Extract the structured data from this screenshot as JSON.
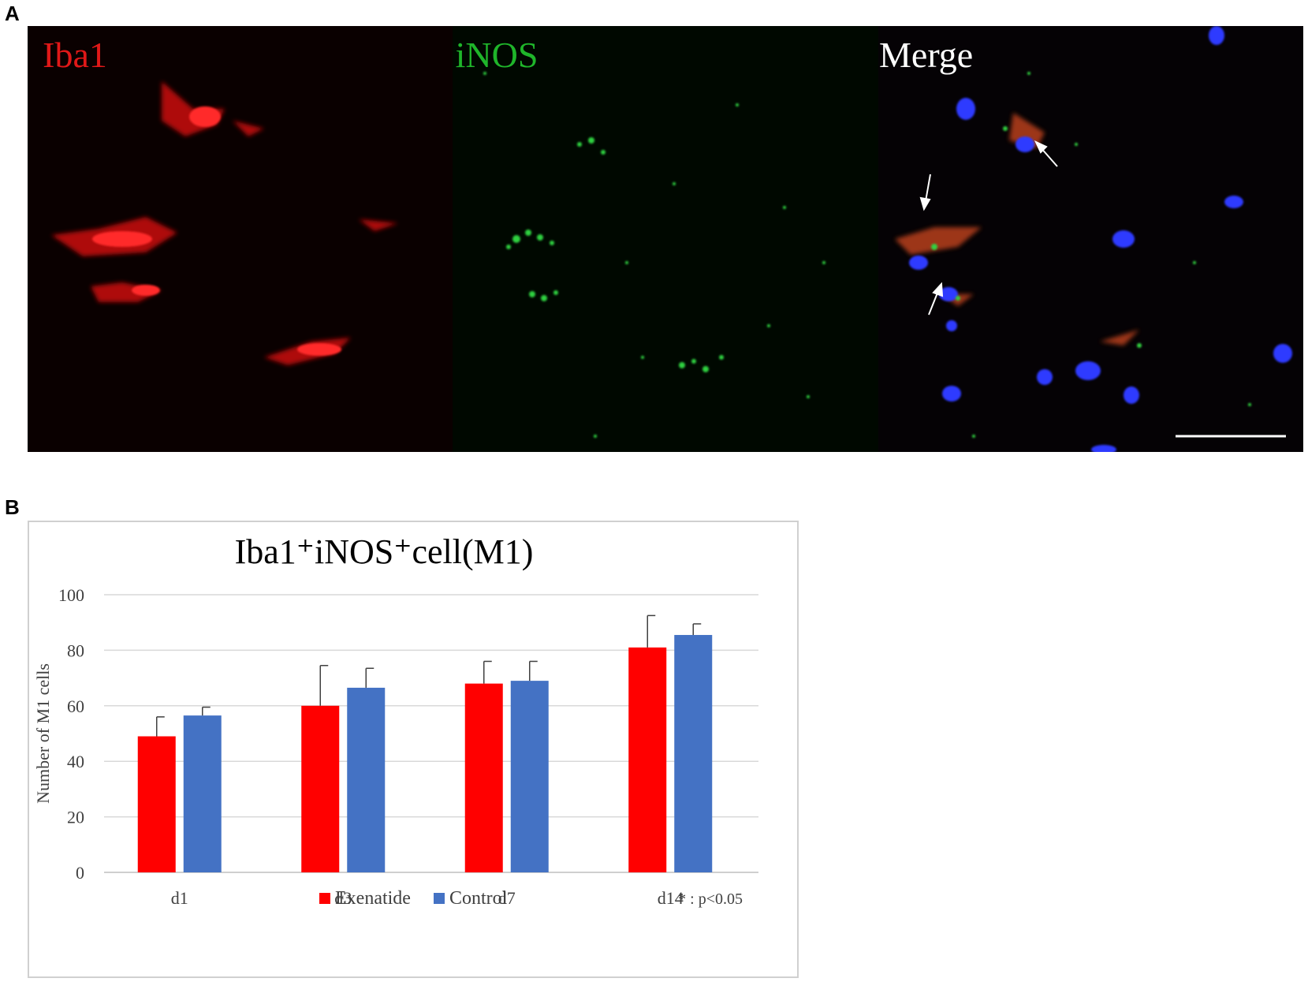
{
  "panel_a": {
    "letter": "A",
    "channels": [
      {
        "label": "Iba1",
        "color": "#e01818"
      },
      {
        "label": "iNOS",
        "color": "#1fb52a"
      },
      {
        "label": "Merge",
        "color": "#ffffff"
      }
    ]
  },
  "panel_b": {
    "letter": "B",
    "note": "* :  p<0.05"
  },
  "chart_data": {
    "type": "bar",
    "title": "Iba1⁺iNOS⁺cell(M1)",
    "ylabel": "Number of M1 cells",
    "xlabel": "",
    "categories": [
      "d1",
      "d3",
      "d7",
      "d14"
    ],
    "yticks": [
      0,
      20,
      40,
      60,
      80,
      100
    ],
    "ylim": [
      0,
      100
    ],
    "grid": true,
    "legend_position": "bottom",
    "series": [
      {
        "name": "Exenatide",
        "color": "#ff0000",
        "values": [
          49,
          60,
          68,
          81
        ],
        "errors": [
          7,
          14.5,
          8,
          11.5
        ]
      },
      {
        "name": "Control",
        "color": "#4472c4",
        "values": [
          56.5,
          66.5,
          69,
          85.5
        ],
        "errors": [
          3,
          7,
          7,
          4
        ]
      }
    ]
  }
}
